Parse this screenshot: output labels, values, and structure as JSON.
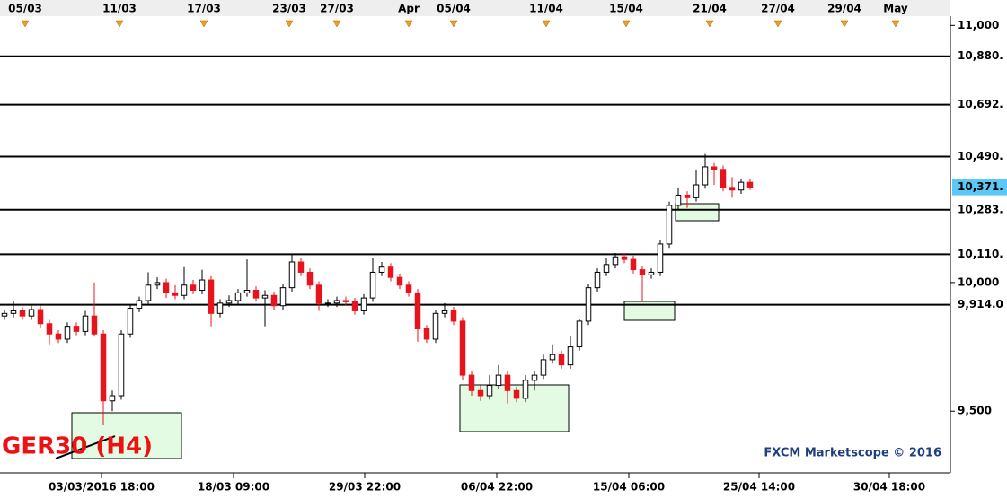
{
  "chart_data": {
    "type": "candlestick",
    "title": "GER30 (H4)",
    "watermark": "FXCM Marketscope © 2016",
    "up_color": "#ffffff",
    "down_color": "#e8141c",
    "x": [
      0,
      1,
      2,
      3,
      4,
      5,
      6,
      7,
      8,
      9,
      10,
      11,
      12,
      13,
      14,
      15,
      16,
      17,
      18,
      19,
      20,
      21,
      22,
      23,
      24,
      25,
      26,
      27,
      28,
      29,
      30,
      31,
      32,
      33,
      34,
      35,
      36,
      37,
      38,
      39,
      40,
      41,
      42,
      43,
      44,
      45,
      46,
      47,
      48,
      49,
      50,
      51,
      52,
      53,
      54,
      55,
      56,
      57,
      58,
      59,
      60,
      61,
      62,
      63,
      64,
      65,
      66,
      67,
      68,
      69,
      70,
      71,
      72,
      73,
      74,
      75,
      76,
      77,
      78,
      79,
      80,
      81,
      82,
      83
    ],
    "open": [
      9870,
      9880,
      9890,
      9870,
      9895,
      9840,
      9800,
      9780,
      9830,
      9810,
      9870,
      9800,
      9540,
      9560,
      9800,
      9900,
      9930,
      9990,
      10000,
      9960,
      9950,
      9990,
      9970,
      10010,
      9880,
      9920,
      9930,
      9960,
      9970,
      9940,
      9950,
      9910,
      9980,
      10080,
      10040,
      9990,
      9920,
      9920,
      9930,
      9925,
      9890,
      9940,
      10040,
      10060,
      10020,
      9990,
      9960,
      9820,
      9780,
      9880,
      9890,
      9850,
      9640,
      9580,
      9560,
      9600,
      9640,
      9580,
      9550,
      9620,
      9640,
      9700,
      9720,
      9680,
      9750,
      9850,
      9980,
      10040,
      10070,
      10100,
      10090,
      10050,
      10030,
      10040,
      10150,
      10300,
      10340,
      10330,
      10380,
      10450,
      10440,
      10370,
      10360,
      10390
    ],
    "high": [
      9895,
      9930,
      9905,
      9910,
      9910,
      9855,
      9815,
      9845,
      9845,
      9890,
      10000,
      9815,
      9580,
      9815,
      9915,
      9945,
      10040,
      10020,
      10015,
      9990,
      10060,
      10010,
      10050,
      10025,
      9935,
      9950,
      9975,
      10090,
      9985,
      9970,
      9965,
      9995,
      10110,
      10095,
      10055,
      10005,
      9935,
      9945,
      9945,
      9940,
      9955,
      10095,
      10080,
      10075,
      10035,
      10005,
      9975,
      9835,
      9895,
      9920,
      9905,
      9865,
      9655,
      9600,
      9640,
      9680,
      9655,
      9595,
      9640,
      9655,
      9720,
      9760,
      9735,
      9790,
      9860,
      9995,
      10055,
      10095,
      10115,
      10115,
      10105,
      10065,
      10055,
      10165,
      10315,
      10370,
      10355,
      10440,
      10500,
      10465,
      10455,
      10410,
      10405,
      10405
    ],
    "low": [
      9855,
      9865,
      9855,
      9855,
      9825,
      9760,
      9765,
      9765,
      9795,
      9795,
      9790,
      9445,
      9500,
      9545,
      9785,
      9885,
      9915,
      9975,
      9940,
      9935,
      9935,
      9955,
      9955,
      9830,
      9865,
      9905,
      9915,
      9945,
      9925,
      9830,
      9895,
      9895,
      9965,
      10025,
      9975,
      9890,
      9905,
      9905,
      9910,
      9875,
      9875,
      9925,
      10025,
      10005,
      9975,
      9945,
      9770,
      9765,
      9765,
      9865,
      9835,
      9620,
      9560,
      9540,
      9545,
      9585,
      9530,
      9535,
      9535,
      9580,
      9625,
      9685,
      9665,
      9665,
      9735,
      9835,
      9965,
      10025,
      10055,
      10075,
      10035,
      9930,
      10015,
      10025,
      10135,
      10285,
      10290,
      10315,
      10365,
      10380,
      10355,
      10330,
      10345,
      10360
    ],
    "close": [
      9880,
      9890,
      9870,
      9895,
      9840,
      9800,
      9780,
      9830,
      9810,
      9870,
      9800,
      9540,
      9560,
      9800,
      9900,
      9930,
      9990,
      10000,
      9960,
      9950,
      9990,
      9970,
      10010,
      9880,
      9920,
      9930,
      9960,
      9970,
      9940,
      9950,
      9910,
      9980,
      10080,
      10040,
      9990,
      9920,
      9920,
      9930,
      9925,
      9890,
      9940,
      10040,
      10060,
      10020,
      9990,
      9960,
      9820,
      9780,
      9880,
      9890,
      9850,
      9640,
      9580,
      9560,
      9600,
      9640,
      9580,
      9550,
      9620,
      9640,
      9700,
      9720,
      9680,
      9750,
      9850,
      9980,
      10040,
      10070,
      10100,
      10090,
      10050,
      10030,
      10040,
      10150,
      10300,
      10340,
      10330,
      10380,
      10450,
      10440,
      10370,
      10360,
      10390,
      10371
    ],
    "xlim": [
      -0.5,
      105.3
    ],
    "ylim": [
      9260,
      11036
    ],
    "yticks": [
      {
        "value": 11000,
        "label": "11,000"
      },
      {
        "value": 10000,
        "label": "10,000"
      },
      {
        "value": 9500,
        "label": "9,500"
      }
    ],
    "xticks": [
      {
        "value": 10.8,
        "label": "03/03/2016 18:00"
      },
      {
        "value": 25.5,
        "label": "18/03 09:00"
      },
      {
        "value": 40.1,
        "label": "29/03 22:00"
      },
      {
        "value": 54.8,
        "label": "06/04 22:00"
      },
      {
        "value": 69.5,
        "label": "15/04 06:00"
      },
      {
        "value": 84,
        "label": "25/04 14:00"
      },
      {
        "value": 98.5,
        "label": "30/04 18:00"
      }
    ],
    "x2ticks": [
      {
        "value": 2.3,
        "label": "05/03"
      },
      {
        "value": 12.8,
        "label": "11/03"
      },
      {
        "value": 22.2,
        "label": "17/03"
      },
      {
        "value": 31.7,
        "label": "23/03"
      },
      {
        "value": 37,
        "label": "27/03"
      },
      {
        "value": 45,
        "label": "Apr"
      },
      {
        "value": 50,
        "label": "05/04"
      },
      {
        "value": 60.3,
        "label": "11/04"
      },
      {
        "value": 69.2,
        "label": "15/04"
      },
      {
        "value": 78.5,
        "label": "21/04"
      },
      {
        "value": 86.1,
        "label": "27/04"
      },
      {
        "value": 93.5,
        "label": "29/04"
      },
      {
        "value": 99.2,
        "label": "May"
      }
    ],
    "levels": [
      {
        "value": 10880,
        "label": "10,880."
      },
      {
        "value": 10692,
        "label": "10,692."
      },
      {
        "value": 10490,
        "label": "10,490."
      },
      {
        "value": 10283,
        "label": "10,283."
      },
      {
        "value": 10110,
        "label": "10,110."
      },
      {
        "value": 9914,
        "label": "9,914.0"
      }
    ],
    "last": {
      "value": 10371,
      "label": "10,371."
    }
  }
}
